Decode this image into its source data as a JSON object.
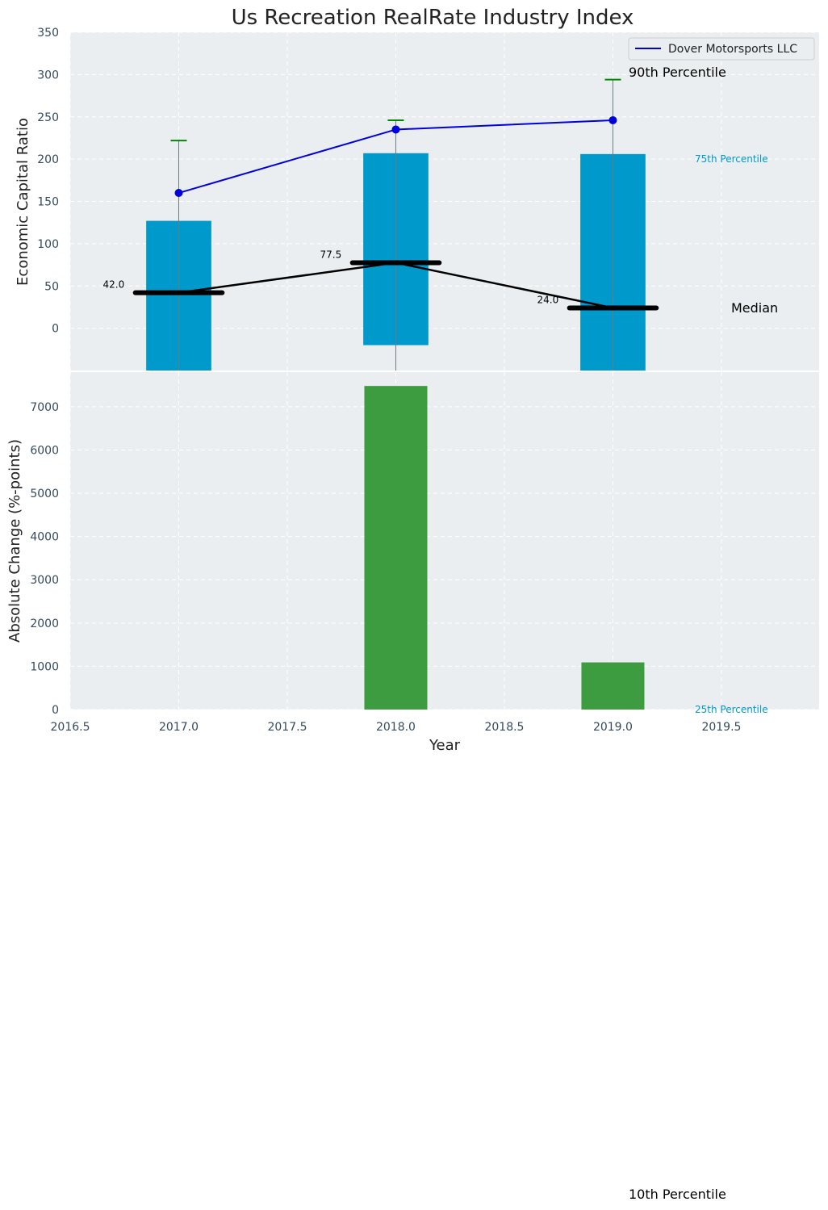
{
  "chart_data": {
    "type": "bar",
    "title": "Us Recreation RealRate Industry Index",
    "xlabel": "Year",
    "x_ticks": [
      "2016.5",
      "2017.0",
      "2017.5",
      "2018.0",
      "2018.5",
      "2019.0",
      "2019.5"
    ],
    "xlim": [
      2016.5,
      2019.95
    ],
    "top_panel": {
      "ylabel": "Economic Capital Ratio",
      "ylim": [
        -50,
        350
      ],
      "y_ticks": [
        "0",
        "50",
        "100",
        "150",
        "200",
        "250",
        "300",
        "350"
      ],
      "years": [
        2017,
        2018,
        2019
      ],
      "percentile_bars": [
        {
          "year": 2017,
          "p25": -50,
          "p75": 127
        },
        {
          "year": 2018,
          "p25": -20,
          "p75": 207
        },
        {
          "year": 2019,
          "p25": -50,
          "p75": 206
        }
      ],
      "p90": [
        222,
        246,
        294
      ],
      "p10_whisker_bottom": [
        -50,
        -50,
        -50
      ],
      "median": [
        42.0,
        77.5,
        24.0
      ],
      "median_labels": [
        "42.0",
        "77.5",
        "24.0"
      ],
      "company_series": {
        "name": "Dover Motorsports LLC",
        "values": [
          160,
          235,
          246
        ]
      },
      "annotations": {
        "p90": "90th Percentile",
        "p75": "75th Percentile",
        "median": "Median",
        "p25": "25th Percentile",
        "p10": "10th Percentile"
      }
    },
    "bottom_panel": {
      "ylabel": "Absolute Change (%-points)",
      "ylim": [
        0,
        7800
      ],
      "y_ticks": [
        "0",
        "1000",
        "2000",
        "3000",
        "4000",
        "5000",
        "6000",
        "7000"
      ],
      "bars": [
        {
          "year": 2018,
          "value": 7480
        },
        {
          "year": 2019,
          "value": 1090
        }
      ]
    },
    "legend": {
      "position": "top-right",
      "entries": [
        "Dover Motorsports LLC"
      ]
    },
    "grid": true
  },
  "colors": {
    "axes_bg": "#eaeef0",
    "grid": "#ffffff",
    "percentile_bar": "#0099cc",
    "company_line": "#0000dd",
    "p90_cap": "#008800",
    "median": "#000000",
    "change_bar": "#3d9c3f",
    "whisker": "#6b7b80",
    "p75_text": "#0099cc"
  }
}
